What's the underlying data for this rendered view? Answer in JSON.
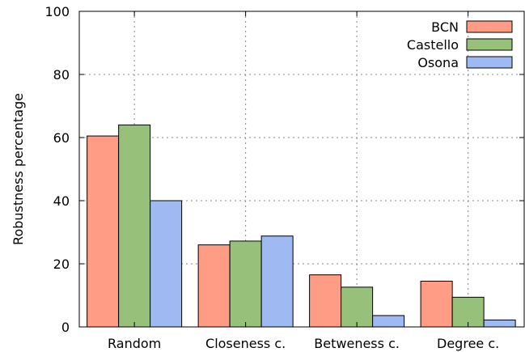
{
  "chart_data": {
    "type": "bar",
    "categories": [
      "Random",
      "Closeness c.",
      "Betweness c.",
      "Degree c."
    ],
    "series": [
      {
        "name": "BCN",
        "color": "#fe9c85",
        "values": [
          60.5,
          26.0,
          16.5,
          14.5
        ]
      },
      {
        "name": "Castello",
        "color": "#97c17a",
        "values": [
          64.0,
          27.2,
          12.6,
          9.4
        ]
      },
      {
        "name": "Osona",
        "color": "#9fbaf2",
        "values": [
          40.0,
          28.8,
          3.6,
          2.2
        ]
      }
    ],
    "ylabel": "Robustness percentage",
    "ylim": [
      0,
      100
    ],
    "yticks": [
      0,
      20,
      40,
      60,
      80,
      100
    ],
    "grid": true,
    "legend_position": "top-right"
  }
}
